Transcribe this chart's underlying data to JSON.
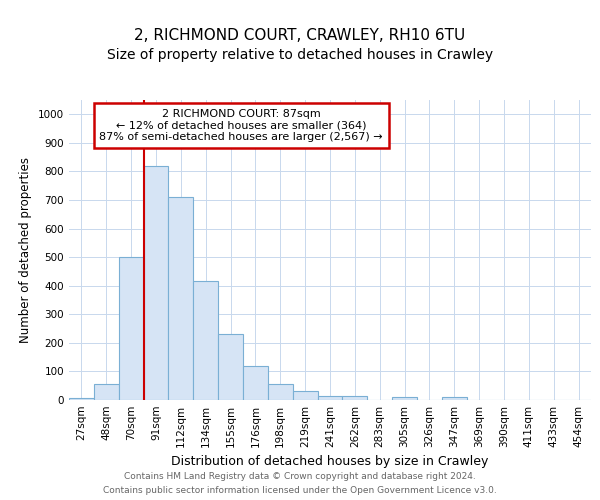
{
  "title1": "2, RICHMOND COURT, CRAWLEY, RH10 6TU",
  "title2": "Size of property relative to detached houses in Crawley",
  "xlabel": "Distribution of detached houses by size in Crawley",
  "ylabel": "Number of detached properties",
  "categories": [
    "27sqm",
    "48sqm",
    "70sqm",
    "91sqm",
    "112sqm",
    "134sqm",
    "155sqm",
    "176sqm",
    "198sqm",
    "219sqm",
    "241sqm",
    "262sqm",
    "283sqm",
    "305sqm",
    "326sqm",
    "347sqm",
    "369sqm",
    "390sqm",
    "411sqm",
    "433sqm",
    "454sqm"
  ],
  "values": [
    8,
    57,
    500,
    820,
    710,
    415,
    230,
    118,
    57,
    33,
    13,
    13,
    0,
    10,
    0,
    10,
    0,
    0,
    0,
    0,
    0
  ],
  "bar_color": "#d6e4f5",
  "bar_edge_color": "#7aafd4",
  "vline_color": "#cc0000",
  "annotation_text": "2 RICHMOND COURT: 87sqm\n← 12% of detached houses are smaller (364)\n87% of semi-detached houses are larger (2,567) →",
  "annotation_box_color": "#ffffff",
  "annotation_box_edge_color": "#cc0000",
  "ylim": [
    0,
    1050
  ],
  "yticks": [
    0,
    100,
    200,
    300,
    400,
    500,
    600,
    700,
    800,
    900,
    1000
  ],
  "footer1": "Contains HM Land Registry data © Crown copyright and database right 2024.",
  "footer2": "Contains public sector information licensed under the Open Government Licence v3.0.",
  "bg_color": "#ffffff",
  "grid_color": "#c8d8ed",
  "title1_fontsize": 11,
  "title2_fontsize": 10,
  "axis_fontsize": 7.5,
  "xlabel_fontsize": 9,
  "ylabel_fontsize": 8.5,
  "footer_fontsize": 6.5,
  "annotation_fontsize": 8
}
